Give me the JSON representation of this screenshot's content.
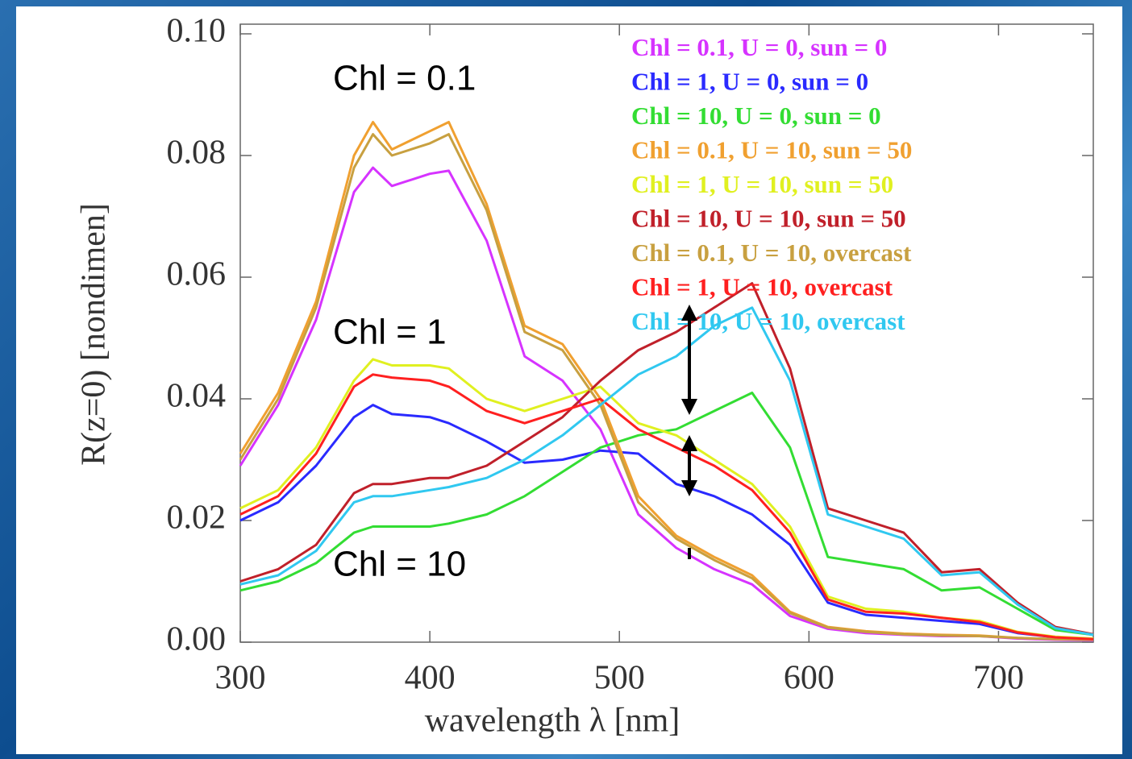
{
  "chart_data": {
    "type": "line",
    "xlabel": "wavelength λ [nm]",
    "ylabel": "R(z=0) [nondimen]",
    "annotations": [
      "Chl = 0.1",
      "Chl = 1",
      "Chl = 10"
    ],
    "xlim": [
      300,
      750
    ],
    "xticks": [
      300,
      400,
      500,
      600,
      700
    ],
    "ylim": [
      0,
      0.1
    ],
    "yticks": [
      {
        "value": 0,
        "label": "0.00"
      },
      {
        "value": 0.02,
        "label": "0.02"
      },
      {
        "value": 0.04,
        "label": "0.04"
      },
      {
        "value": 0.06,
        "label": "0.06"
      },
      {
        "value": 0.08,
        "label": "0.08"
      },
      {
        "value": 0.1,
        "label": "0.10"
      }
    ],
    "x": [
      300,
      320,
      340,
      360,
      370,
      380,
      400,
      410,
      430,
      450,
      470,
      490,
      510,
      530,
      550,
      570,
      590,
      610,
      630,
      650,
      670,
      690,
      710,
      730,
      750
    ],
    "series": [
      {
        "name": "Chl = 0.1, U = 0, sun = 0",
        "color": "#d633ff",
        "values": [
          0.029,
          0.039,
          0.053,
          0.074,
          0.078,
          0.075,
          0.077,
          0.0775,
          0.066,
          0.047,
          0.043,
          0.035,
          0.021,
          0.0155,
          0.012,
          0.0095,
          0.0043,
          0.0022,
          0.0015,
          0.0012,
          0.001,
          0.001,
          0.0006,
          0.0004,
          0.0003
        ]
      },
      {
        "name": "Chl = 1, U = 0, sun = 0",
        "color": "#2a2aff",
        "values": [
          0.02,
          0.023,
          0.029,
          0.037,
          0.039,
          0.0375,
          0.037,
          0.036,
          0.033,
          0.0295,
          0.03,
          0.0315,
          0.031,
          0.026,
          0.024,
          0.021,
          0.016,
          0.0065,
          0.0045,
          0.004,
          0.0035,
          0.003,
          0.0015,
          0.0008,
          0.0005
        ]
      },
      {
        "name": "Chl = 10, U = 0, sun = 0",
        "color": "#33dd33",
        "values": [
          0.0085,
          0.01,
          0.013,
          0.018,
          0.019,
          0.019,
          0.019,
          0.0195,
          0.021,
          0.024,
          0.028,
          0.032,
          0.034,
          0.035,
          0.038,
          0.041,
          0.032,
          0.014,
          0.013,
          0.012,
          0.0085,
          0.009,
          0.0055,
          0.002,
          0.0012
        ]
      },
      {
        "name": "Chl = 0.1, U = 10, sun = 50",
        "color": "#f0a030",
        "values": [
          0.031,
          0.041,
          0.056,
          0.08,
          0.0855,
          0.081,
          0.084,
          0.0855,
          0.072,
          0.052,
          0.049,
          0.04,
          0.024,
          0.0175,
          0.014,
          0.011,
          0.005,
          0.0025,
          0.0018,
          0.0014,
          0.0012,
          0.0011,
          0.0007,
          0.0005,
          0.0004
        ]
      },
      {
        "name": "Chl = 1, U = 10, sun = 50",
        "color": "#e0f020",
        "values": [
          0.022,
          0.025,
          0.032,
          0.043,
          0.0465,
          0.0455,
          0.0455,
          0.045,
          0.04,
          0.038,
          0.04,
          0.042,
          0.036,
          0.034,
          0.03,
          0.026,
          0.019,
          0.0075,
          0.0055,
          0.005,
          0.004,
          0.0035,
          0.0017,
          0.0009,
          0.0006
        ]
      },
      {
        "name": "Chl = 10, U = 10, sun = 50",
        "color": "#c0202a",
        "values": [
          0.01,
          0.012,
          0.016,
          0.0245,
          0.026,
          0.026,
          0.027,
          0.027,
          0.029,
          0.033,
          0.037,
          0.043,
          0.048,
          0.051,
          0.055,
          0.059,
          0.045,
          0.022,
          0.02,
          0.018,
          0.0115,
          0.012,
          0.0065,
          0.0025,
          0.0013
        ]
      },
      {
        "name": "Chl = 0.1, U = 10, overcast",
        "color": "#c8a040",
        "values": [
          0.03,
          0.04,
          0.055,
          0.078,
          0.0835,
          0.08,
          0.082,
          0.0835,
          0.071,
          0.051,
          0.048,
          0.039,
          0.023,
          0.017,
          0.0135,
          0.0105,
          0.0048,
          0.0024,
          0.0017,
          0.0013,
          0.0011,
          0.001,
          0.0007,
          0.0005,
          0.0004
        ]
      },
      {
        "name": "Chl = 1, U = 10, overcast",
        "color": "#ff2020",
        "values": [
          0.021,
          0.024,
          0.031,
          0.042,
          0.044,
          0.0435,
          0.043,
          0.042,
          0.038,
          0.036,
          0.038,
          0.04,
          0.035,
          0.032,
          0.029,
          0.025,
          0.018,
          0.007,
          0.005,
          0.0047,
          0.004,
          0.0033,
          0.0016,
          0.0008,
          0.0005
        ]
      },
      {
        "name": "Chl = 10, U = 10, overcast",
        "color": "#30c8f0",
        "values": [
          0.0095,
          0.011,
          0.015,
          0.023,
          0.024,
          0.024,
          0.025,
          0.0255,
          0.027,
          0.03,
          0.034,
          0.039,
          0.044,
          0.047,
          0.052,
          0.055,
          0.043,
          0.021,
          0.019,
          0.017,
          0.011,
          0.0115,
          0.0062,
          0.0023,
          0.0012
        ]
      }
    ]
  }
}
